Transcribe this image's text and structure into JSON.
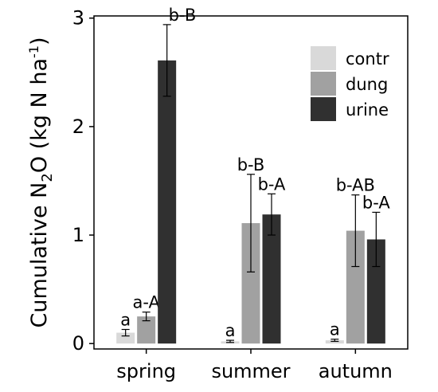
{
  "chart_data": {
    "type": "bar",
    "categories": [
      "spring",
      "summer",
      "autumn"
    ],
    "series": [
      {
        "name": "contr",
        "color": "#d9d9d9",
        "values": [
          0.1,
          0.02,
          0.03
        ],
        "error": [
          0.03,
          0.01,
          0.01
        ],
        "labels": [
          "a",
          "a",
          "a"
        ]
      },
      {
        "name": "dung",
        "color": "#a1a1a1",
        "values": [
          0.25,
          1.11,
          1.04
        ],
        "error": [
          0.04,
          0.45,
          0.33
        ],
        "labels": [
          "a-A",
          "b-B",
          "b-AB"
        ]
      },
      {
        "name": "urine",
        "color": "#303030",
        "values": [
          2.61,
          1.19,
          0.96
        ],
        "error": [
          0.33,
          0.19,
          0.25
        ],
        "labels": [
          "b-B",
          "b-A",
          "b-A"
        ]
      }
    ],
    "title": "",
    "xlabel": "",
    "ylabel": {
      "prefix": "Cumulative N",
      "sub": "2",
      "mid": "O (kg N ha",
      "sup": "-1",
      "suffix": ")"
    },
    "ylim": [
      -0.05,
      3.02
    ],
    "yticks": [
      0,
      1,
      2,
      3
    ],
    "grid": false,
    "legend": "top-right"
  }
}
